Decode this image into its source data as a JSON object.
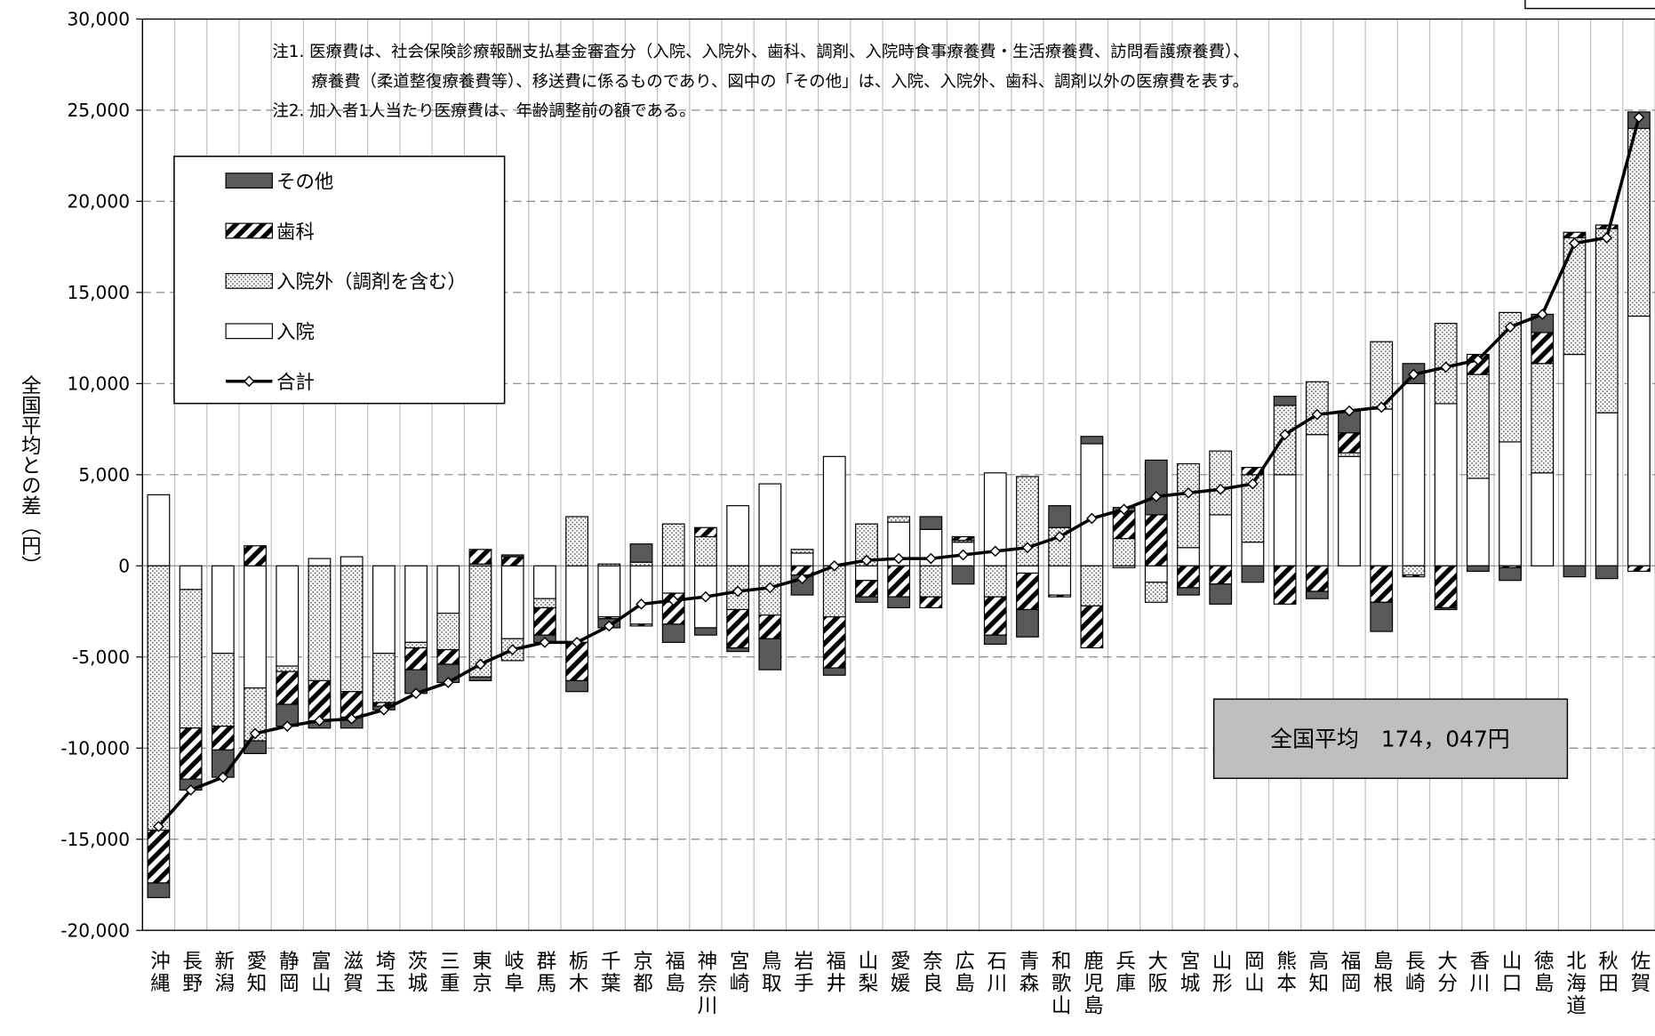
{
  "chart_data": {
    "type": "bar",
    "y_axis_label": "全国平均との差（円）",
    "notes": [
      "注1. 医療費は、社会保険診療報酬支払基金審査分（入院、入院外、歯科、調剤、入院時食事療養費・生活療養費、訪問看護療養費）、",
      "療養費（柔道整復療養費等）、移送費に係るものであり、図中の「その他」は、入院、入院外、歯科、調剤以外の医療費を表す。",
      "注2. 加入者1人当たり医療費は、年齢調整前の額である。"
    ],
    "annotation": "全国平均　174，047円",
    "ylim": [
      -20000,
      30000
    ],
    "yticks": [
      {
        "value": -20000,
        "label": "-20,000"
      },
      {
        "value": -15000,
        "label": "-15,000"
      },
      {
        "value": -10000,
        "label": "-10,000"
      },
      {
        "value": -5000,
        "label": "-5,000"
      },
      0,
      {
        "value": 5000,
        "label": "5,000"
      },
      {
        "value": 10000,
        "label": "10,000"
      },
      {
        "value": 15000,
        "label": "15,000"
      },
      {
        "value": 20000,
        "label": "20,000"
      },
      {
        "value": 25000,
        "label": "25,000"
      },
      {
        "value": 30000,
        "label": "30,000"
      }
    ],
    "grid": true,
    "legend": "upper left",
    "categories": [
      "沖縄",
      "長野",
      "新潟",
      "愛知",
      "静岡",
      "富山",
      "滋賀",
      "埼玉",
      "茨城",
      "三重",
      "東京",
      "岐阜",
      "群馬",
      "栃木",
      "千葉",
      "京都",
      "福島",
      "神奈川",
      "宮崎",
      "鳥取",
      "岩手",
      "福井",
      "山梨",
      "愛媛",
      "奈良",
      "広島",
      "石川",
      "青森",
      "和歌山",
      "鹿児島",
      "兵庫",
      "大阪",
      "宮城",
      "山形",
      "岡山",
      "熊本",
      "高知",
      "福岡",
      "島根",
      "長崎",
      "大分",
      "香川",
      "山口",
      "徳島",
      "北海道",
      "秋田",
      "佐賀"
    ],
    "series": [
      {
        "name": "入院",
        "type": "bar",
        "color": "#ffffff",
        "pattern": "solid",
        "values": [
          3900,
          -1300,
          -4800,
          -6700,
          -5500,
          400,
          500,
          -4800,
          -4200,
          -2600,
          100,
          -4000,
          -1800,
          -4200,
          -2800,
          -3200,
          -1500,
          -3400,
          3300,
          4500,
          700,
          6000,
          -800,
          2400,
          2000,
          1300,
          5100,
          -400,
          -1600,
          6700,
          -100,
          -900,
          1000,
          2800,
          1300,
          5000,
          7200,
          6000,
          8600,
          10000,
          8900,
          4800,
          6800,
          5100,
          11600,
          8400,
          13700
        ]
      },
      {
        "name": "入院外（調剤を含む）",
        "type": "bar",
        "color": "#ffffff",
        "pattern": "dots",
        "values": [
          -14500,
          -7600,
          -4000,
          -2900,
          -300,
          -6300,
          -6900,
          -2700,
          -300,
          -2000,
          -6100,
          -1200,
          -500,
          2700,
          100,
          200,
          2300,
          1600,
          -2400,
          -2700,
          200,
          -2800,
          2300,
          300,
          -1700,
          100,
          -1700,
          4900,
          2100,
          -2200,
          1500,
          -1100,
          4600,
          3500,
          3700,
          3800,
          2900,
          200,
          3700,
          -500,
          4400,
          5700,
          7100,
          6000,
          6400,
          10100,
          10300
        ]
      },
      {
        "name": "歯科",
        "type": "bar",
        "color": "#000000",
        "pattern": "hatch",
        "values": [
          -2900,
          -2800,
          -1300,
          1100,
          -1800,
          -2200,
          -1400,
          -200,
          -1200,
          -800,
          800,
          500,
          -1500,
          -2100,
          -100,
          -100,
          -1700,
          500,
          -2100,
          -1300,
          -500,
          -2800,
          -900,
          -1700,
          -600,
          200,
          -2100,
          -2000,
          -100,
          -2300,
          1500,
          2800,
          -1200,
          -1000,
          400,
          -2100,
          -1400,
          1100,
          -2000,
          -100,
          -2300,
          1100,
          -100,
          1700,
          300,
          200,
          -300
        ]
      },
      {
        "name": "その他",
        "type": "bar",
        "color": "#595959",
        "pattern": "solid",
        "values": [
          -800,
          -600,
          -1500,
          -700,
          -1200,
          -400,
          -600,
          -200,
          -1300,
          -1000,
          -200,
          100,
          -400,
          -600,
          -500,
          1000,
          -1000,
          -400,
          -200,
          -1700,
          -1100,
          -400,
          -300,
          -600,
          700,
          -1000,
          -500,
          -1500,
          1200,
          400,
          200,
          3000,
          -400,
          -1100,
          -900,
          500,
          -400,
          1200,
          -1600,
          1100,
          -100,
          -300,
          -700,
          1000,
          -600,
          -700,
          900
        ]
      },
      {
        "name": "合計",
        "type": "line",
        "color": "#000000",
        "values": [
          -14300,
          -12300,
          -11600,
          -9200,
          -8800,
          -8500,
          -8400,
          -7900,
          -7000,
          -6400,
          -5400,
          -4600,
          -4200,
          -4200,
          -3300,
          -2100,
          -1900,
          -1700,
          -1400,
          -1200,
          -700,
          0,
          300,
          400,
          400,
          600,
          800,
          1000,
          1600,
          2600,
          3100,
          3800,
          4000,
          4200,
          4500,
          7200,
          8300,
          8500,
          8700,
          10500,
          10900,
          11300,
          13100,
          13800,
          17700,
          18000,
          24600
        ]
      }
    ]
  }
}
